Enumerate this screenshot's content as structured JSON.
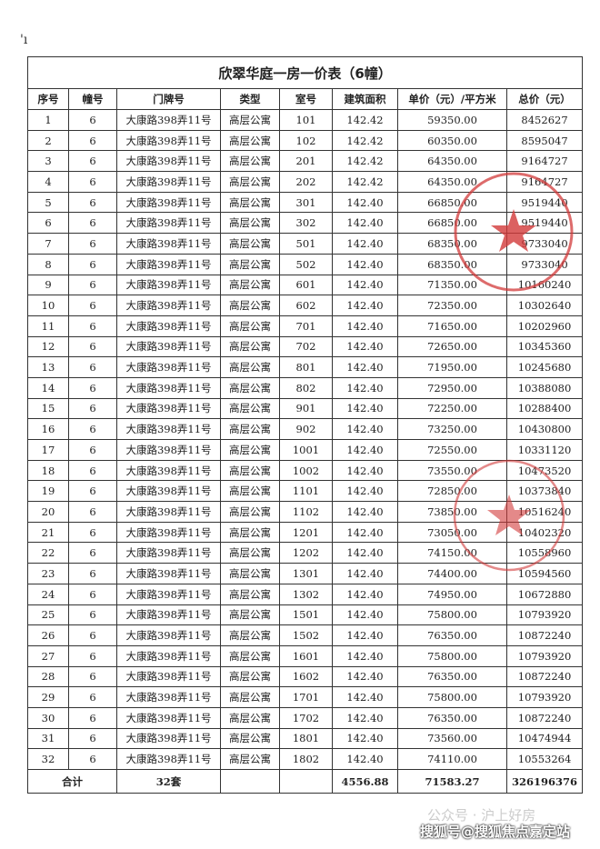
{
  "corner_mark": "'ı",
  "title": "欣翠华庭一房一价表（6幢）",
  "headers": [
    "序号",
    "幢号",
    "门牌号",
    "类型",
    "室号",
    "建筑面积",
    "单价（元）/平方米",
    "总价（元）"
  ],
  "rows": [
    [
      "1",
      "6",
      "大康路398弄11号",
      "高层公寓",
      "101",
      "142.42",
      "59350.00",
      "8452627"
    ],
    [
      "2",
      "6",
      "大康路398弄11号",
      "高层公寓",
      "102",
      "142.42",
      "60350.00",
      "8595047"
    ],
    [
      "3",
      "6",
      "大康路398弄11号",
      "高层公寓",
      "201",
      "142.42",
      "64350.00",
      "9164727"
    ],
    [
      "4",
      "6",
      "大康路398弄11号",
      "高层公寓",
      "202",
      "142.42",
      "64350.00",
      "9164727"
    ],
    [
      "5",
      "6",
      "大康路398弄11号",
      "高层公寓",
      "301",
      "142.40",
      "66850.00",
      "9519440"
    ],
    [
      "6",
      "6",
      "大康路398弄11号",
      "高层公寓",
      "302",
      "142.40",
      "66850.00",
      "9519440"
    ],
    [
      "7",
      "6",
      "大康路398弄11号",
      "高层公寓",
      "501",
      "142.40",
      "68350.00",
      "9733040"
    ],
    [
      "8",
      "6",
      "大康路398弄11号",
      "高层公寓",
      "502",
      "142.40",
      "68350.00",
      "9733040"
    ],
    [
      "9",
      "6",
      "大康路398弄11号",
      "高层公寓",
      "601",
      "142.40",
      "71350.00",
      "10160240"
    ],
    [
      "10",
      "6",
      "大康路398弄11号",
      "高层公寓",
      "602",
      "142.40",
      "72350.00",
      "10302640"
    ],
    [
      "11",
      "6",
      "大康路398弄11号",
      "高层公寓",
      "701",
      "142.40",
      "71650.00",
      "10202960"
    ],
    [
      "12",
      "6",
      "大康路398弄11号",
      "高层公寓",
      "702",
      "142.40",
      "72650.00",
      "10345360"
    ],
    [
      "13",
      "6",
      "大康路398弄11号",
      "高层公寓",
      "801",
      "142.40",
      "71950.00",
      "10245680"
    ],
    [
      "14",
      "6",
      "大康路398弄11号",
      "高层公寓",
      "802",
      "142.40",
      "72950.00",
      "10388080"
    ],
    [
      "15",
      "6",
      "大康路398弄11号",
      "高层公寓",
      "901",
      "142.40",
      "72250.00",
      "10288400"
    ],
    [
      "16",
      "6",
      "大康路398弄11号",
      "高层公寓",
      "902",
      "142.40",
      "73250.00",
      "10430800"
    ],
    [
      "17",
      "6",
      "大康路398弄11号",
      "高层公寓",
      "1001",
      "142.40",
      "72550.00",
      "10331120"
    ],
    [
      "18",
      "6",
      "大康路398弄11号",
      "高层公寓",
      "1002",
      "142.40",
      "73550.00",
      "10473520"
    ],
    [
      "19",
      "6",
      "大康路398弄11号",
      "高层公寓",
      "1101",
      "142.40",
      "72850.00",
      "10373840"
    ],
    [
      "20",
      "6",
      "大康路398弄11号",
      "高层公寓",
      "1102",
      "142.40",
      "73850.00",
      "10516240"
    ],
    [
      "21",
      "6",
      "大康路398弄11号",
      "高层公寓",
      "1201",
      "142.40",
      "73050.00",
      "10402320"
    ],
    [
      "22",
      "6",
      "大康路398弄11号",
      "高层公寓",
      "1202",
      "142.40",
      "74150.00",
      "10558960"
    ],
    [
      "23",
      "6",
      "大康路398弄11号",
      "高层公寓",
      "1301",
      "142.40",
      "74400.00",
      "10594560"
    ],
    [
      "24",
      "6",
      "大康路398弄11号",
      "高层公寓",
      "1302",
      "142.40",
      "74950.00",
      "10672880"
    ],
    [
      "25",
      "6",
      "大康路398弄11号",
      "高层公寓",
      "1501",
      "142.40",
      "75800.00",
      "10793920"
    ],
    [
      "26",
      "6",
      "大康路398弄11号",
      "高层公寓",
      "1502",
      "142.40",
      "76350.00",
      "10872240"
    ],
    [
      "27",
      "6",
      "大康路398弄11号",
      "高层公寓",
      "1601",
      "142.40",
      "75800.00",
      "10793920"
    ],
    [
      "28",
      "6",
      "大康路398弄11号",
      "高层公寓",
      "1602",
      "142.40",
      "76350.00",
      "10872240"
    ],
    [
      "29",
      "6",
      "大康路398弄11号",
      "高层公寓",
      "1701",
      "142.40",
      "75800.00",
      "10793920"
    ],
    [
      "30",
      "6",
      "大康路398弄11号",
      "高层公寓",
      "1702",
      "142.40",
      "76350.00",
      "10872240"
    ],
    [
      "31",
      "6",
      "大康路398弄11号",
      "高层公寓",
      "1801",
      "142.40",
      "73560.00",
      "10474944"
    ],
    [
      "32",
      "6",
      "大康路398弄11号",
      "高层公寓",
      "1802",
      "142.40",
      "74110.00",
      "10553264"
    ]
  ],
  "total": {
    "label": "合计",
    "units": "32套",
    "type": "",
    "room": "",
    "area": "4556.88",
    "unit_price": "71583.27",
    "total_price": "326196376"
  },
  "watermark": {
    "line1": "公众号 · 沪上好房",
    "line2": "搜狐号@搜狐焦点嘉定站"
  },
  "colors": {
    "stamp": "#d23a3a",
    "text": "#222222"
  }
}
